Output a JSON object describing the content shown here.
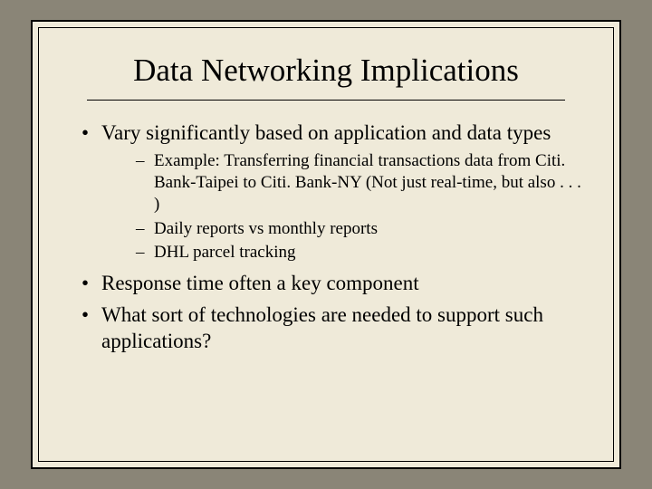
{
  "slide": {
    "title": "Data Networking Implications",
    "bullets": {
      "b0": "Vary significantly based on application and data types",
      "sub": {
        "s0": "Example: Transferring financial transactions data from Citi. Bank-Taipei to Citi. Bank-NY (Not just real-time, but also . . . )",
        "s1": "Daily reports vs monthly reports",
        "s2": "DHL parcel tracking"
      },
      "b1": "Response time often a key component",
      "b2": "What sort of technologies are needed to support such applications?"
    }
  },
  "style": {
    "background_color": "#8a8577",
    "slide_background": "#efead9",
    "border_color": "#000000",
    "text_color": "#000000",
    "title_fontsize": 35,
    "bullet_l1_fontsize": 23,
    "bullet_l2_fontsize": 19,
    "font_family": "Georgia, Times New Roman, serif",
    "slide_width": 720,
    "slide_height": 540
  }
}
